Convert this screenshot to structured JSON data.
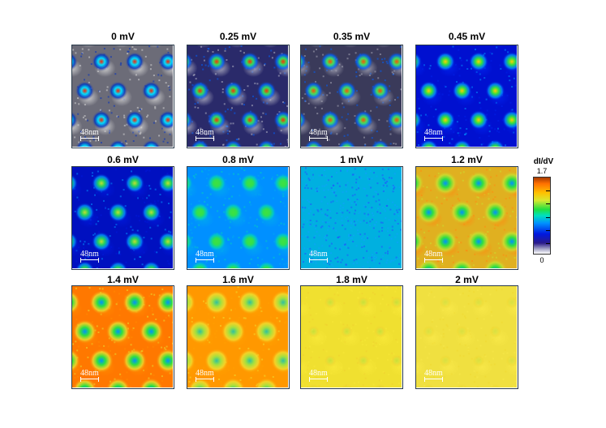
{
  "figure": {
    "panels": [
      {
        "title": "0 mV",
        "scalebar": "48nm",
        "palette": "gray"
      },
      {
        "title": "0.25 mV",
        "scalebar": "48nm",
        "palette": "navy"
      },
      {
        "title": "0.35 mV",
        "scalebar": "48nm",
        "palette": "navy2"
      },
      {
        "title": "0.45 mV",
        "scalebar": "48nm",
        "palette": "blue"
      },
      {
        "title": "0.6 mV",
        "scalebar": "48nm",
        "palette": "blue2"
      },
      {
        "title": "0.8 mV",
        "scalebar": "48nm",
        "palette": "teal"
      },
      {
        "title": "1 mV",
        "scalebar": "48nm",
        "palette": "noisy"
      },
      {
        "title": "1.2 mV",
        "scalebar": "48nm",
        "palette": "orange_gy"
      },
      {
        "title": "1.4 mV",
        "scalebar": "48nm",
        "palette": "orange"
      },
      {
        "title": "1.6 mV",
        "scalebar": "48nm",
        "palette": "orange_y"
      },
      {
        "title": "1.8 mV",
        "scalebar": "48nm",
        "palette": "yellow"
      },
      {
        "title": "2 mV",
        "scalebar": "48nm",
        "palette": "yellow2"
      }
    ],
    "colorbar": {
      "label": "dI/dV",
      "max": "1.7",
      "min": "0"
    }
  },
  "palettes": {
    "gray": {
      "bg": "#6c6c78",
      "blob": "#d8d8d8",
      "core": "#ff2000",
      "ring": "#00e0ff",
      "halo": "#0030c0",
      "style": "vortex"
    },
    "navy": {
      "bg": "#2a2a6a",
      "blob": "#b8b8c8",
      "core": "#ff3000",
      "ring": "#30e060",
      "halo": "#0060ff",
      "style": "vortex"
    },
    "navy2": {
      "bg": "#3a3a5a",
      "blob": "#a8a8b8",
      "core": "#ff5000",
      "ring": "#40e060",
      "halo": "#0060ff",
      "style": "vortex"
    },
    "blue": {
      "bg": "#0010d0",
      "blob": "#0020e8",
      "core": "#ffd000",
      "ring": "#30e040",
      "halo": "#0090ff",
      "style": "vortex"
    },
    "blue2": {
      "bg": "#0010c0",
      "blob": "#0018d8",
      "core": "#c0e030",
      "ring": "#20d060",
      "halo": "#0090ff",
      "style": "vortex"
    },
    "teal": {
      "bg": "#0090ff",
      "blob": "#00a8f0",
      "core": "#40e040",
      "ring": "#30e050",
      "halo": "#00d0c0",
      "style": "vortex"
    },
    "noisy": {
      "bg": "#00b0e0",
      "blob": "#2050ff",
      "core": "#40d080",
      "ring": "#30c0c0",
      "halo": "#10a0ff",
      "style": "noise"
    },
    "orange_gy": {
      "bg": "#e0b020",
      "blob": "#ff8a10",
      "core": "#0090ff",
      "ring": "#30e040",
      "halo": "#c8e030",
      "style": "antivortex"
    },
    "orange": {
      "bg": "#ff7800",
      "blob": "#ff8a00",
      "core": "#0090ff",
      "ring": "#30e040",
      "halo": "#e8e030",
      "style": "antivortex"
    },
    "orange_y": {
      "bg": "#ff9800",
      "blob": "#ffa000",
      "core": "#30c0a0",
      "ring": "#a0e040",
      "halo": "#f0e030",
      "style": "antivortex"
    },
    "yellow": {
      "bg": "#f0e030",
      "blob": "#f8e838",
      "core": "#a0e040",
      "ring": "#c8e040",
      "halo": "#f0d030",
      "style": "faint"
    },
    "yellow2": {
      "bg": "#f0e040",
      "blob": "#f8e848",
      "core": "#c0e040",
      "ring": "#d8e040",
      "halo": "#f0d830",
      "style": "faint"
    }
  }
}
